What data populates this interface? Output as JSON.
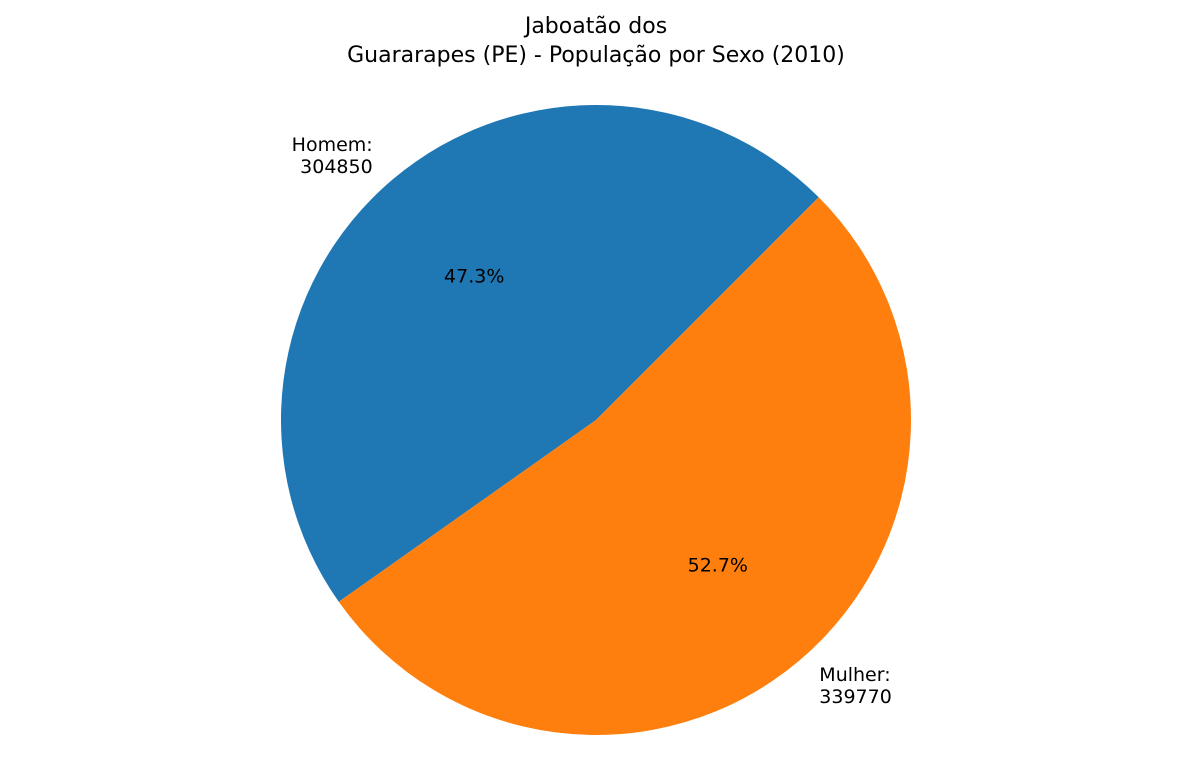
{
  "chart_data": {
    "type": "pie",
    "title_lines": [
      "Jaboatão dos",
      "Guararapes (PE) - População por Sexo (2010)"
    ],
    "slices": [
      {
        "name": "Homem",
        "value": 304850,
        "label_lines": [
          "Homem:",
          "304850"
        ],
        "pct_label": "47.3%",
        "color": "#1f77b4"
      },
      {
        "name": "Mulher",
        "value": 339770,
        "label_lines": [
          "Mulher:",
          "339770"
        ],
        "pct_label": "52.7%",
        "color": "#ff7f0e"
      }
    ],
    "start_angle_deg": 45,
    "direction": "counterclockwise"
  }
}
